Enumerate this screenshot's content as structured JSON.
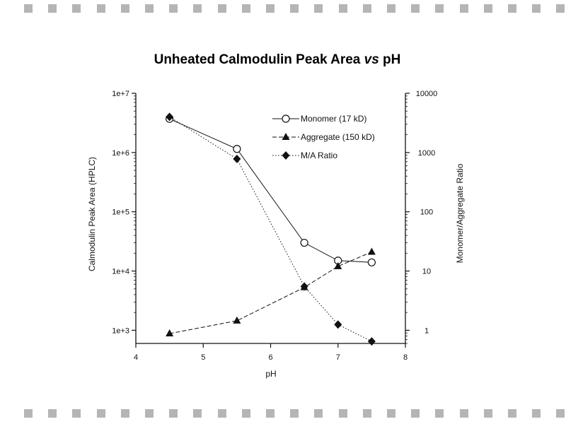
{
  "chart_data": {
    "type": "line",
    "title_main": "Unheated Calmodulin Peak Area ",
    "title_italic": "vs",
    "title_tail": " pH",
    "xlabel": "pH",
    "ylabel_left": "Calmodulin Peak Area (HPLC)",
    "ylabel_right": "Monomer/Aggregate Ratio",
    "xlim": [
      4,
      8
    ],
    "ylim_left": [
      600,
      10000000
    ],
    "ylim_right": [
      0.6,
      10000
    ],
    "y_scale": "log",
    "grid": false,
    "legend_position": "top-right",
    "x_ticks": [
      "4",
      "5",
      "6",
      "7",
      "8"
    ],
    "y_ticks_left": [
      "1e+3",
      "1e+4",
      "1e+5",
      "1e+6",
      "1e+7"
    ],
    "y_ticks_right": [
      "1",
      "10",
      "100",
      "1000",
      "10000"
    ],
    "series": [
      {
        "name": "Monomer (17 kD)",
        "axis": "left",
        "marker": "open-circle",
        "line": "solid",
        "x": [
          4.5,
          5.5,
          6.5,
          7.0,
          7.5
        ],
        "y": [
          3700000,
          1150000,
          30000,
          15000,
          14000
        ]
      },
      {
        "name": "Aggregate (150 kD)",
        "axis": "left",
        "marker": "filled-triangle",
        "line": "dashed",
        "x": [
          4.5,
          5.5,
          6.5,
          7.0,
          7.5
        ],
        "y": [
          880,
          1450,
          5300,
          12000,
          21000
        ]
      },
      {
        "name": "M/A Ratio",
        "axis": "right",
        "marker": "filled-diamond",
        "line": "dotted",
        "x": [
          4.5,
          5.5,
          6.5,
          7.0,
          7.5
        ],
        "y": [
          4000,
          780,
          5.5,
          1.25,
          0.65
        ]
      }
    ]
  }
}
